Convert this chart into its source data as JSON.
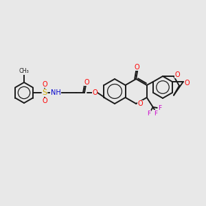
{
  "bg_color": "#e8e8e8",
  "bond_color": "#1a1a1a",
  "atom_colors": {
    "O": "#ff0000",
    "N": "#0000cc",
    "S": "#ccaa00",
    "F": "#cc00cc",
    "H": "#1a1a1a",
    "C": "#1a1a1a"
  },
  "figsize": [
    3.0,
    3.0
  ],
  "dpi": 100,
  "lw": 1.4,
  "r_small": 14,
  "r_large": 17
}
